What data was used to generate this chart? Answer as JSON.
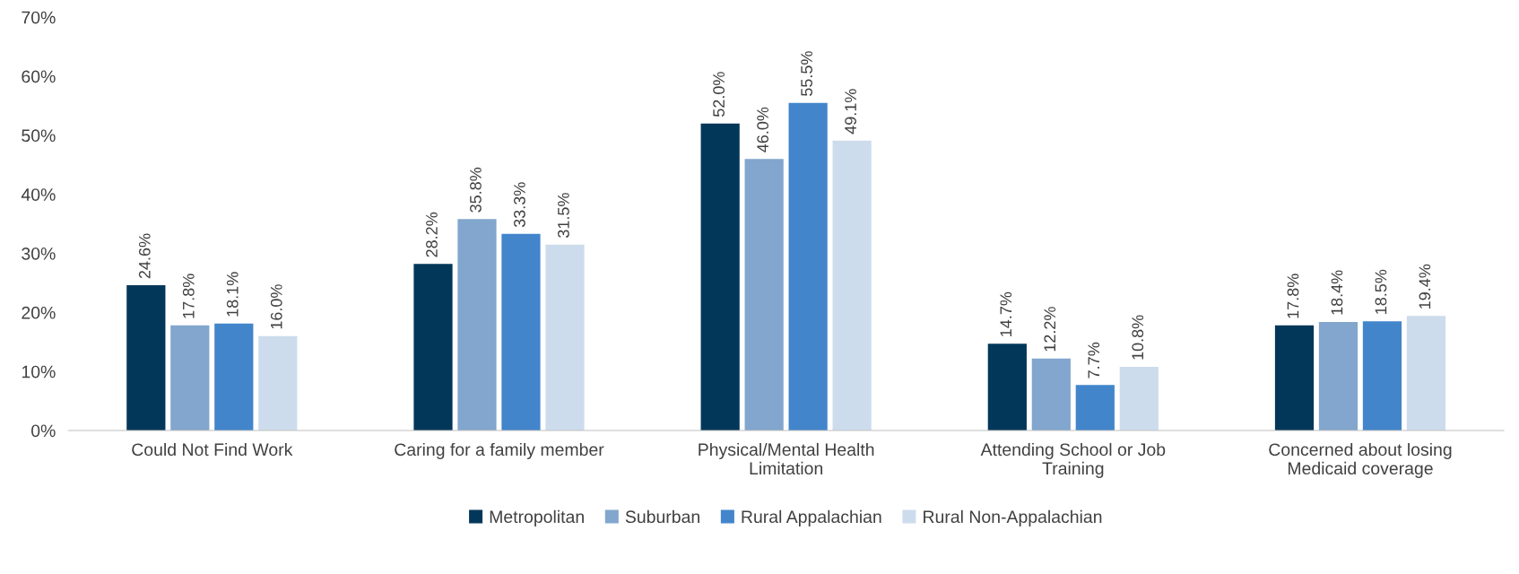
{
  "chart_data": {
    "type": "bar",
    "categories": [
      "Could Not Find Work",
      "Caring for a family member",
      "Physical/Mental Health\nLimitation",
      "Attending School or Job\nTraining",
      "Concerned about losing\nMedicaid coverage"
    ],
    "series": [
      {
        "name": "Metropolitan",
        "color": "#03375a",
        "values": [
          24.6,
          28.2,
          52.0,
          14.7,
          17.8
        ],
        "value_labels": [
          "24.6%",
          "28.2%",
          "52.0%",
          "14.7%",
          "17.8%"
        ]
      },
      {
        "name": "Suburban",
        "color": "#82a6cd",
        "values": [
          17.8,
          35.8,
          46.0,
          12.2,
          18.4
        ],
        "value_labels": [
          "17.8%",
          "35.8%",
          "46.0%",
          "12.2%",
          "18.4%"
        ]
      },
      {
        "name": "Rural Appalachian",
        "color": "#4285cb",
        "values": [
          18.1,
          33.3,
          55.5,
          7.7,
          18.5
        ],
        "value_labels": [
          "18.1%",
          "33.3%",
          "55.5%",
          "7.7%",
          "18.5%"
        ]
      },
      {
        "name": "Rural Non-Appalachian",
        "color": "#cddcec",
        "values": [
          16.0,
          31.5,
          49.1,
          10.8,
          19.4
        ],
        "value_labels": [
          "16.0%",
          "31.5%",
          "49.1%",
          "10.8%",
          "19.4%"
        ]
      }
    ],
    "ylim": [
      0,
      70
    ],
    "yticks": [
      {
        "value": 0,
        "label": "0%"
      },
      {
        "value": 10,
        "label": "10%"
      },
      {
        "value": 20,
        "label": "20%"
      },
      {
        "value": 30,
        "label": "30%"
      },
      {
        "value": 40,
        "label": "40%"
      },
      {
        "value": 50,
        "label": "50%"
      },
      {
        "value": 60,
        "label": "60%"
      },
      {
        "value": 70,
        "label": "70%"
      }
    ],
    "grid": false,
    "legend": "bottom"
  }
}
